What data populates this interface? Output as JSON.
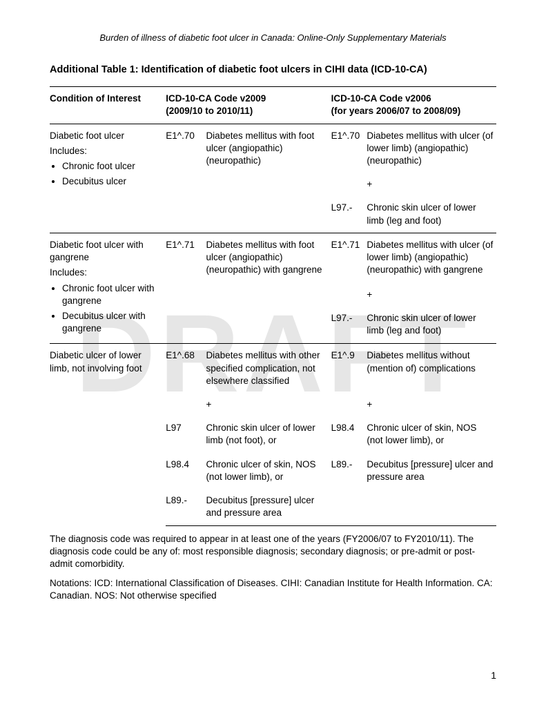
{
  "watermark": "DRAFT",
  "header": "Burden of illness of diabetic foot ulcer in Canada: Online-Only Supplementary Materials",
  "title": "Additional Table 1: Identification of diabetic foot ulcers in CIHI data (ICD-10-CA)",
  "columns": {
    "condition": "Condition of Interest",
    "v2009_title": "ICD-10-CA Code v2009",
    "v2009_sub": "(2009/10 to 2010/11)",
    "v2006_title": "ICD-10-CA Code v2006",
    "v2006_sub": "(for years 2006/07 to 2008/09)"
  },
  "rows": [
    {
      "condition": "Diabetic foot ulcer",
      "includes_label": "Includes:",
      "includes": [
        "Chronic foot ulcer",
        "Decubitus ulcer"
      ],
      "v2009": [
        {
          "code": "E1^.70",
          "desc": "Diabetes mellitus with foot ulcer (angiopathic) (neuropathic)"
        }
      ],
      "v2006": [
        {
          "code": "E1^.70",
          "desc": "Diabetes mellitus with ulcer (of lower limb) (angiopathic) (neuropathic)"
        },
        {
          "code": "",
          "desc": "+"
        },
        {
          "code": "L97.-",
          "desc": "Chronic skin ulcer of lower limb (leg and foot)"
        }
      ]
    },
    {
      "condition": "Diabetic foot ulcer with gangrene",
      "includes_label": "Includes:",
      "includes": [
        "Chronic foot ulcer with gangrene",
        "Decubitus ulcer with gangrene"
      ],
      "v2009": [
        {
          "code": "E1^.71",
          "desc": "Diabetes mellitus with foot ulcer (angiopathic) (neuropathic) with gangrene"
        }
      ],
      "v2006": [
        {
          "code": "E1^.71",
          "desc": "Diabetes mellitus with ulcer (of lower limb) (angiopathic) (neuropathic) with gangrene"
        },
        {
          "code": "",
          "desc": "+"
        },
        {
          "code": "L97.-",
          "desc": "Chronic skin ulcer of lower limb (leg and foot)"
        }
      ]
    },
    {
      "condition": "Diabetic ulcer of lower limb, not involving foot",
      "includes_label": "",
      "includes": [],
      "v2009": [
        {
          "code": "E1^.68",
          "desc": "Diabetes mellitus with other specified complication, not elsewhere classified"
        },
        {
          "code": "",
          "desc": "+"
        },
        {
          "code": "L97",
          "desc": "Chronic skin ulcer of lower limb (not foot), or"
        },
        {
          "code": "L98.4",
          "desc": "Chronic ulcer of skin, NOS (not lower limb), or"
        },
        {
          "code": "L89.-",
          "desc": "Decubitus [pressure] ulcer and pressure area"
        }
      ],
      "v2006": [
        {
          "code": "E1^.9",
          "desc": "Diabetes mellitus without (mention of) complications"
        },
        {
          "code": "",
          "desc": "+"
        },
        {
          "code": "L98.4",
          "desc": "Chronic ulcer of skin, NOS (not lower limb), or"
        },
        {
          "code": "L89.-",
          "desc": "Decubitus [pressure] ulcer and pressure area"
        }
      ]
    }
  ],
  "footnote1": "The diagnosis code was required to appear in at least one of the years (FY2006/07 to FY2010/11). The diagnosis code could be any of: most responsible diagnosis; secondary diagnosis; or pre-admit or post-admit comorbidity.",
  "footnote2": "Notations: ICD: International Classification of Diseases. CIHI: Canadian Institute for Health Information. CA: Canadian. NOS: Not otherwise specified",
  "page_number": "1"
}
